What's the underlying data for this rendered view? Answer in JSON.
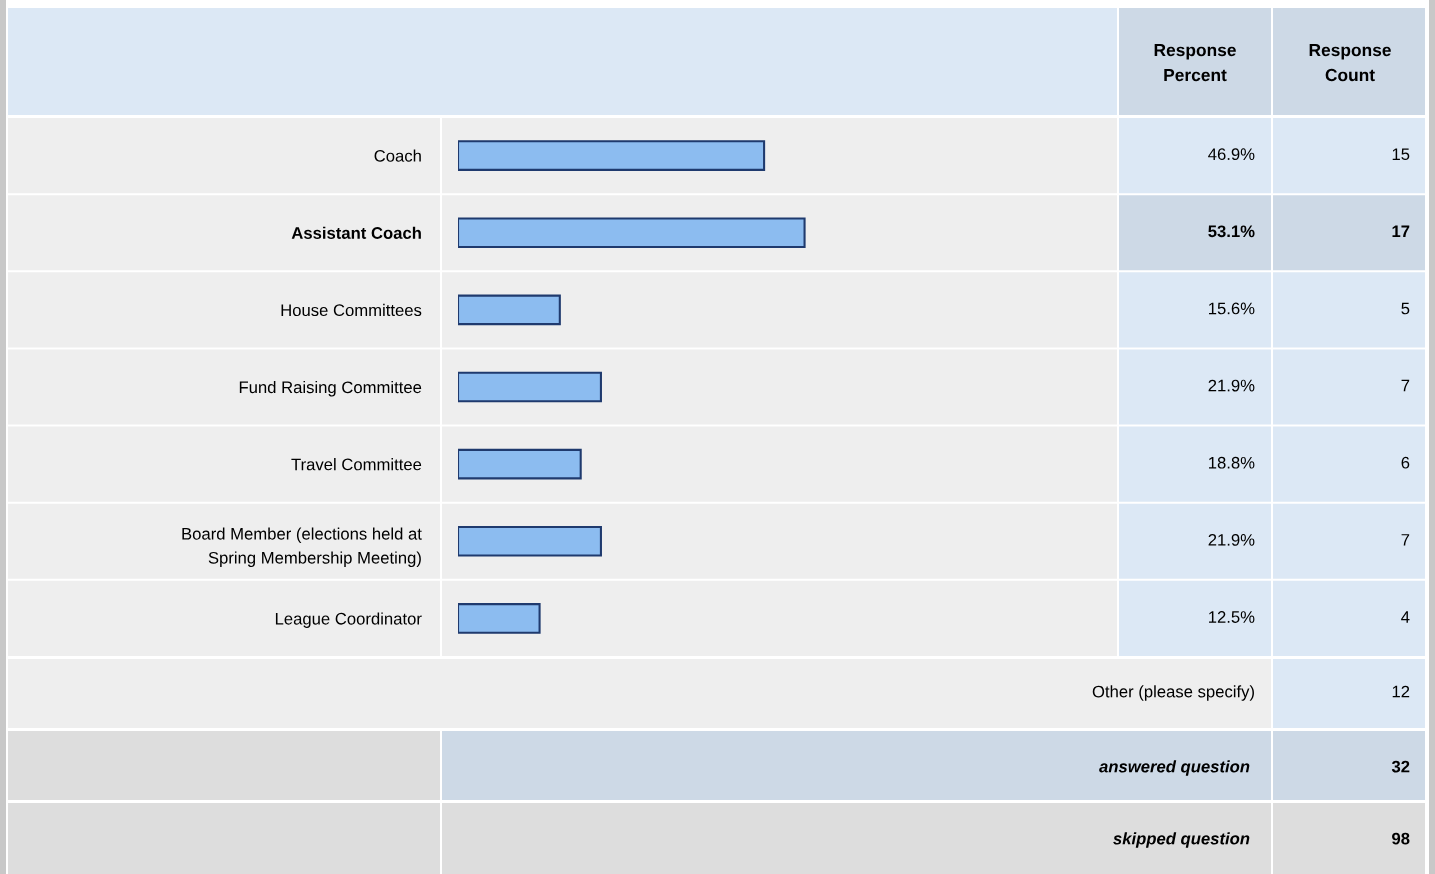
{
  "chart_data": {
    "type": "bar",
    "orientation": "horizontal",
    "categories": [
      "Coach",
      "Assistant Coach",
      "House Committees",
      "Fund Raising Committee",
      "Travel Committee",
      "Board Member (elections held at Spring Membership Meeting)",
      "League Coordinator"
    ],
    "values": [
      46.9,
      53.1,
      15.6,
      21.9,
      18.8,
      21.9,
      12.5
    ],
    "value_labels": [
      "46.9%",
      "53.1%",
      "15.6%",
      "21.9%",
      "18.8%",
      "21.9%",
      "12.5%"
    ],
    "color": "#8cbcf0",
    "tick_labels": "y",
    "annotations": [
      "Response Percent",
      "Response Count",
      "15",
      "17",
      "5",
      "7",
      "6",
      "7",
      "4",
      "Other (please specify)",
      "12",
      "answered question",
      "32",
      "skipped question",
      "98"
    ]
  }
}
